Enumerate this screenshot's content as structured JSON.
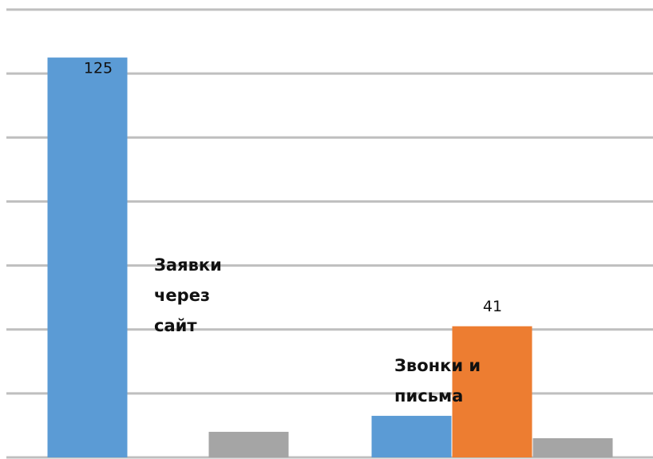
{
  "chart_data": {
    "type": "bar",
    "categories": [
      null,
      null
    ],
    "series": [
      {
        "color": "#5b9bd5",
        "values": [
          125,
          13
        ],
        "value_labels": [
          "125",
          null
        ]
      },
      {
        "color": "#ed7d31",
        "values": [
          null,
          41
        ],
        "value_labels": [
          null,
          "41"
        ]
      },
      {
        "color": "#a5a5a5",
        "values": [
          8,
          6
        ]
      }
    ],
    "ylim": [
      0,
      140
    ],
    "yticks": [
      0,
      20,
      40,
      60,
      80,
      100,
      120,
      140
    ],
    "grid": true,
    "annotations": [
      "Заявки через сайт",
      "Звонки и письма"
    ]
  }
}
